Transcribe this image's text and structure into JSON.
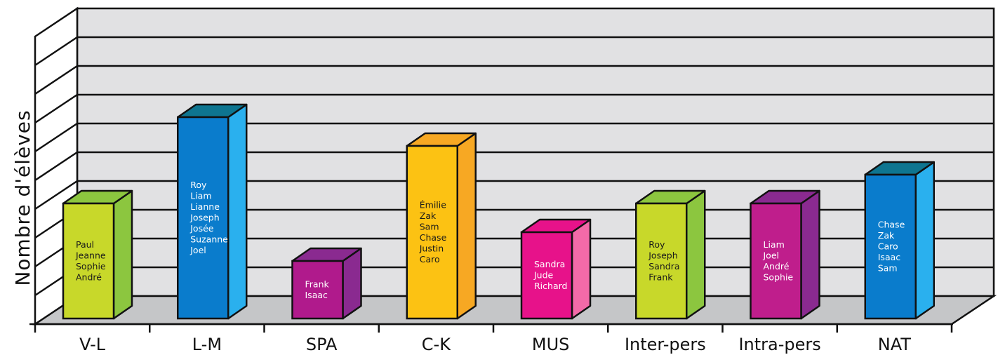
{
  "chart_data": {
    "type": "bar",
    "title": "",
    "xlabel": "",
    "ylabel": "Nombre d'élèves",
    "ylim": [
      0,
      9
    ],
    "grid": true,
    "legend": "none",
    "categories": [
      "V-L",
      "L-M",
      "SPA",
      "C-K",
      "MUS",
      "Inter-pers",
      "Intra-pers",
      "NAT"
    ],
    "values": [
      4,
      7,
      2,
      6,
      3,
      4,
      4,
      5
    ],
    "bar_names": [
      [
        "Paul",
        "Jeanne",
        "Sophie",
        "André"
      ],
      [
        "Roy",
        "Liam",
        "Lianne",
        "Joseph",
        "Josée",
        "Suzanne",
        "Joel"
      ],
      [
        "Frank",
        "Isaac"
      ],
      [
        "Émilie",
        "Zak",
        "Sam",
        "Chase",
        "Justin",
        "Caro"
      ],
      [
        "Sandra",
        "Jude",
        "Richard"
      ],
      [
        "Roy",
        "Joseph",
        "Sandra",
        "Frank"
      ],
      [
        "Liam",
        "Joel",
        "André",
        "Sophie"
      ],
      [
        "Chase",
        "Zak",
        "Caro",
        "Isaac",
        "Sam"
      ]
    ],
    "bar_colors": [
      {
        "front": "#c8d82a",
        "side": "#8cc63f",
        "top": "#8cc63f",
        "text": "#1a1a1a"
      },
      {
        "front": "#0a7ccc",
        "side": "#2ab0ee",
        "top": "#0e7590",
        "text": "#ffffff"
      },
      {
        "front": "#b01a8c",
        "side": "#8a2a90",
        "top": "#8a2a90",
        "text": "#ffffff"
      },
      {
        "front": "#fcc213",
        "side": "#f7a823",
        "top": "#f7a823",
        "text": "#1a1a1a"
      },
      {
        "front": "#e7128a",
        "side": "#f36aa8",
        "top": "#e7128a",
        "text": "#ffffff"
      },
      {
        "front": "#c8d82a",
        "side": "#8cc63f",
        "top": "#8cc63f",
        "text": "#1a1a1a"
      },
      {
        "front": "#bf1e8c",
        "side": "#8a2a90",
        "top": "#8a2a90",
        "text": "#ffffff"
      },
      {
        "front": "#0a7ccc",
        "side": "#2ab0ee",
        "top": "#0e7590",
        "text": "#ffffff"
      }
    ],
    "colors": {
      "back_wall": "#e1e1e3",
      "floor": "#c5c6c8",
      "outline": "#111111"
    }
  }
}
